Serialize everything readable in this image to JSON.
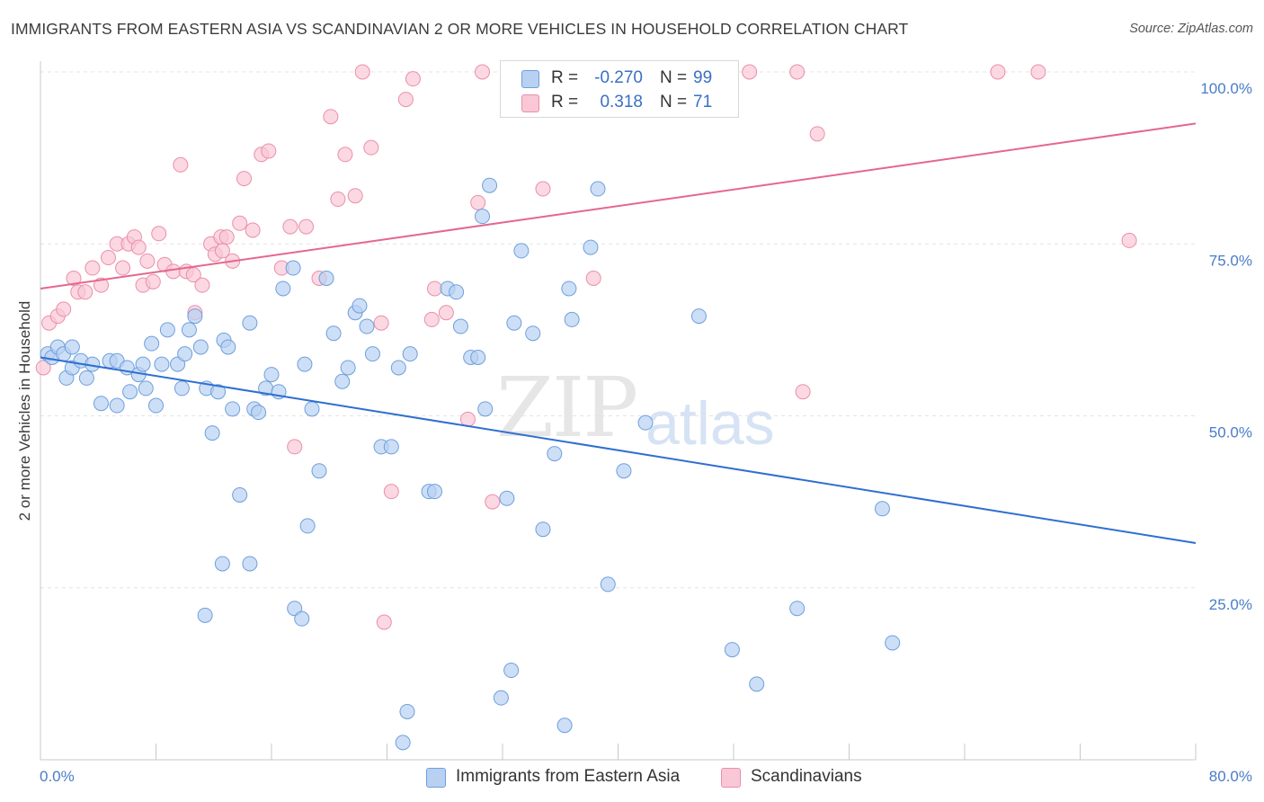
{
  "title": "IMMIGRANTS FROM EASTERN ASIA VS SCANDINAVIAN 2 OR MORE VEHICLES IN HOUSEHOLD CORRELATION CHART",
  "source": "Source: ZipAtlas.com",
  "watermark": {
    "zip": "ZIP",
    "atlas": "atlas"
  },
  "legend": {
    "r_label": "R =",
    "n_label": "N =",
    "rows": [
      {
        "r": "-0.270",
        "n": "99",
        "color": "#a8c8f0"
      },
      {
        "r": "0.318",
        "n": "71",
        "color": "#f7b8cb"
      }
    ]
  },
  "colors": {
    "blue_fill": "#b8d1f2",
    "blue_stroke": "#6e9fdc",
    "blue_line": "#2f6fd0",
    "pink_fill": "#f9c7d6",
    "pink_stroke": "#ea8fab",
    "pink_line": "#e4678f"
  },
  "chart_data": {
    "type": "scatter",
    "title": "IMMIGRANTS FROM EASTERN ASIA VS SCANDINAVIAN 2 OR MORE VEHICLES IN HOUSEHOLD CORRELATION CHART",
    "xlabel": "",
    "ylabel": "2 or more Vehicles in Household",
    "xlim": [
      0,
      80
    ],
    "ylim": [
      0,
      100
    ],
    "x_tick_labels": [
      "0.0%",
      "80.0%"
    ],
    "y_ticks": [
      25,
      50,
      75,
      100
    ],
    "y_tick_labels": [
      "25.0%",
      "50.0%",
      "75.0%",
      "100.0%"
    ],
    "grid": true,
    "legend_position": "top-center",
    "series": [
      {
        "name": "Immigrants from Eastern Asia",
        "color": "#a8c8f0",
        "trend": {
          "x": [
            0,
            80
          ],
          "y": [
            58.5,
            31.5
          ]
        },
        "points": [
          [
            0.5,
            59
          ],
          [
            0.8,
            58.5
          ],
          [
            1.2,
            60
          ],
          [
            1.6,
            59
          ],
          [
            1.8,
            55.5
          ],
          [
            2.2,
            60
          ],
          [
            2.2,
            57
          ],
          [
            2.8,
            58
          ],
          [
            3.2,
            55.5
          ],
          [
            3.6,
            57.5
          ],
          [
            4.2,
            51.8
          ],
          [
            4.8,
            58
          ],
          [
            5.3,
            58
          ],
          [
            5.3,
            51.5
          ],
          [
            6,
            57
          ],
          [
            6.2,
            53.5
          ],
          [
            6.8,
            56
          ],
          [
            7.1,
            57.5
          ],
          [
            7.3,
            54
          ],
          [
            7.7,
            60.5
          ],
          [
            8,
            51.5
          ],
          [
            8.4,
            57.5
          ],
          [
            8.8,
            62.5
          ],
          [
            9.5,
            57.5
          ],
          [
            9.8,
            54
          ],
          [
            10,
            59
          ],
          [
            10.3,
            62.5
          ],
          [
            10.7,
            64.5
          ],
          [
            11.1,
            60
          ],
          [
            11.5,
            54
          ],
          [
            11.9,
            47.5
          ],
          [
            12.3,
            53.5
          ],
          [
            12.7,
            61
          ],
          [
            13,
            60
          ],
          [
            13.3,
            51
          ],
          [
            13.8,
            38.5
          ],
          [
            14.5,
            63.5
          ],
          [
            14.8,
            51
          ],
          [
            15.1,
            50.5
          ],
          [
            15.6,
            54
          ],
          [
            16,
            56
          ],
          [
            16.5,
            53.5
          ],
          [
            16.8,
            68.5
          ],
          [
            17.5,
            71.5
          ],
          [
            18.3,
            57.5
          ],
          [
            18.5,
            34
          ],
          [
            18.8,
            51
          ],
          [
            19.3,
            42
          ],
          [
            19.8,
            70
          ],
          [
            20.3,
            62
          ],
          [
            20.9,
            55
          ],
          [
            21.3,
            57
          ],
          [
            21.8,
            65
          ],
          [
            22.1,
            66
          ],
          [
            22.6,
            63
          ],
          [
            23,
            59
          ],
          [
            23.6,
            45.5
          ],
          [
            24.3,
            45.5
          ],
          [
            24.8,
            57
          ],
          [
            25.6,
            59
          ],
          [
            26.9,
            39
          ],
          [
            27.3,
            39
          ],
          [
            28.2,
            68.5
          ],
          [
            28.8,
            68
          ],
          [
            29.1,
            63
          ],
          [
            29.8,
            58.5
          ],
          [
            30.3,
            58.5
          ],
          [
            30.6,
            79
          ],
          [
            30.8,
            51
          ],
          [
            31.1,
            83.5
          ],
          [
            32.3,
            38
          ],
          [
            32.8,
            63.5
          ],
          [
            33.3,
            74
          ],
          [
            34.1,
            62
          ],
          [
            34.8,
            33.5
          ],
          [
            35.6,
            44.5
          ],
          [
            36.6,
            68.5
          ],
          [
            36.8,
            64
          ],
          [
            38.6,
            83
          ],
          [
            39.3,
            25.5
          ],
          [
            40.4,
            42
          ],
          [
            41.9,
            49
          ],
          [
            45.6,
            64.5
          ],
          [
            47.9,
            16
          ],
          [
            49.6,
            11
          ],
          [
            52.4,
            22
          ],
          [
            58.3,
            36.5
          ],
          [
            59,
            17
          ],
          [
            11.4,
            21
          ],
          [
            12.6,
            28.5
          ],
          [
            14.5,
            28.5
          ],
          [
            17.6,
            22
          ],
          [
            18.1,
            20.5
          ],
          [
            32.6,
            13
          ],
          [
            31.9,
            9
          ],
          [
            25.4,
            7
          ],
          [
            25.1,
            2.5
          ],
          [
            36.3,
            5
          ],
          [
            38.1,
            74.5
          ]
        ]
      },
      {
        "name": "Scandinavians",
        "color": "#f7b8cb",
        "trend": {
          "x": [
            0,
            80
          ],
          "y": [
            68.5,
            92.5
          ]
        },
        "points": [
          [
            0.2,
            57
          ],
          [
            0.6,
            63.5
          ],
          [
            1.2,
            64.5
          ],
          [
            1.6,
            65.5
          ],
          [
            2.3,
            70
          ],
          [
            2.6,
            68
          ],
          [
            3.1,
            68
          ],
          [
            3.6,
            71.5
          ],
          [
            4.2,
            69
          ],
          [
            4.7,
            73
          ],
          [
            5.3,
            75
          ],
          [
            5.7,
            71.5
          ],
          [
            6.1,
            75
          ],
          [
            6.5,
            76
          ],
          [
            6.8,
            74.5
          ],
          [
            7.1,
            69
          ],
          [
            7.4,
            72.5
          ],
          [
            7.8,
            69.5
          ],
          [
            8.2,
            76.5
          ],
          [
            8.6,
            72
          ],
          [
            9.2,
            71
          ],
          [
            9.7,
            86.5
          ],
          [
            10.1,
            71
          ],
          [
            10.6,
            70.5
          ],
          [
            11.2,
            69
          ],
          [
            11.8,
            75
          ],
          [
            12.1,
            73.5
          ],
          [
            12.5,
            76
          ],
          [
            12.9,
            76
          ],
          [
            13.3,
            72.5
          ],
          [
            13.8,
            78
          ],
          [
            14.1,
            84.5
          ],
          [
            14.7,
            77
          ],
          [
            15.3,
            88
          ],
          [
            15.8,
            88.5
          ],
          [
            16.7,
            71.5
          ],
          [
            17.3,
            77.5
          ],
          [
            17.6,
            45.5
          ],
          [
            18.4,
            77.5
          ],
          [
            19.3,
            70
          ],
          [
            20.1,
            93.5
          ],
          [
            20.6,
            81.5
          ],
          [
            21.1,
            88
          ],
          [
            21.8,
            82
          ],
          [
            22.3,
            100
          ],
          [
            22.9,
            89
          ],
          [
            23.6,
            63.5
          ],
          [
            24.3,
            39
          ],
          [
            25.3,
            96
          ],
          [
            25.8,
            99
          ],
          [
            27.1,
            64
          ],
          [
            27.3,
            68.5
          ],
          [
            28.1,
            65
          ],
          [
            29.6,
            49.5
          ],
          [
            30.3,
            81
          ],
          [
            31.3,
            37.5
          ],
          [
            34.8,
            83
          ],
          [
            36.6,
            100
          ],
          [
            38.3,
            70
          ],
          [
            41.8,
            100
          ],
          [
            49.1,
            100
          ],
          [
            52.4,
            100
          ],
          [
            52.8,
            53.5
          ],
          [
            53.8,
            91
          ],
          [
            66.3,
            100
          ],
          [
            69.1,
            100
          ],
          [
            75.4,
            75.5
          ],
          [
            23.8,
            20
          ],
          [
            10.7,
            65
          ],
          [
            12.6,
            74
          ],
          [
            30.6,
            100
          ]
        ]
      }
    ]
  }
}
